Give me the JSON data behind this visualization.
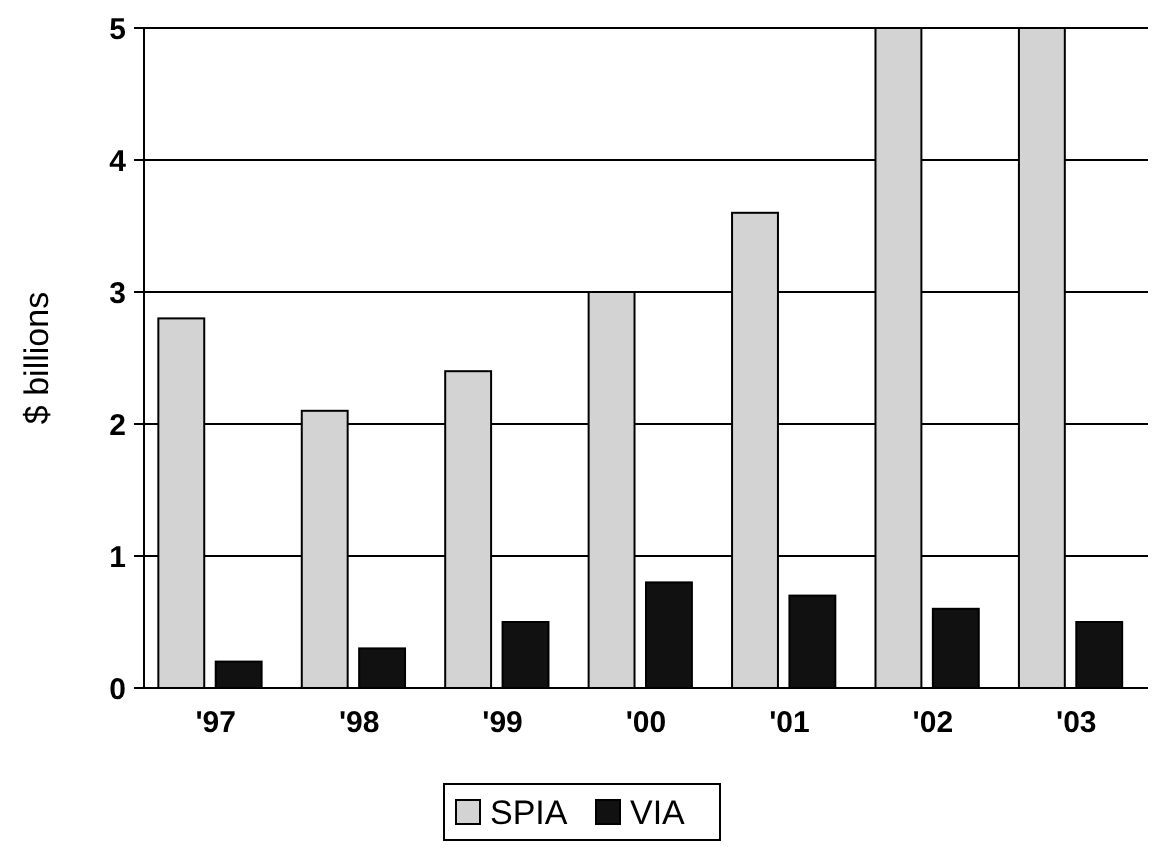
{
  "chart_data": {
    "type": "bar",
    "ylabel": "$ billions",
    "categories": [
      "'97",
      "'98",
      "'99",
      "'00",
      "'01",
      "'02",
      "'03"
    ],
    "series": [
      {
        "name": "SPIA",
        "color": "#d3d3d3",
        "values": [
          2.8,
          2.1,
          2.4,
          3.0,
          3.6,
          5.0,
          5.0
        ]
      },
      {
        "name": "VIA",
        "color": "#111111",
        "values": [
          0.2,
          0.3,
          0.5,
          0.8,
          0.7,
          0.6,
          0.5
        ]
      }
    ],
    "ylim": [
      0,
      5
    ],
    "yticks": [
      0,
      1,
      2,
      3,
      4,
      5
    ],
    "grid": "y",
    "legend": "bottom"
  }
}
